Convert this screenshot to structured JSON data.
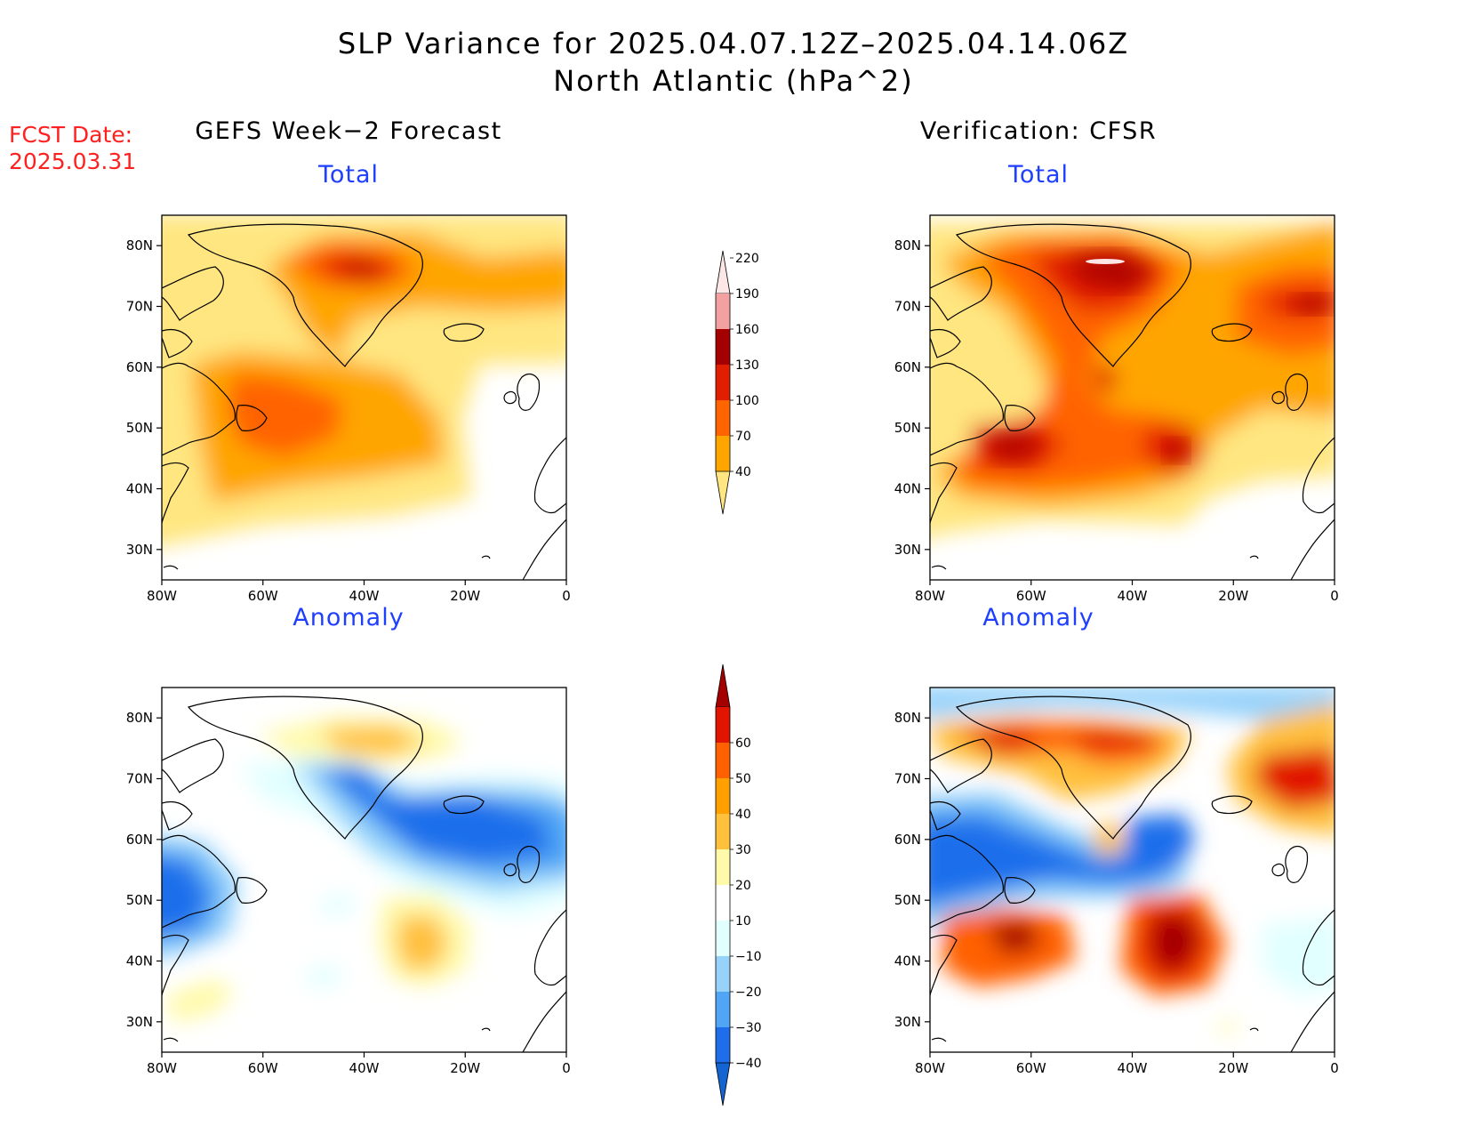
{
  "title_line1": "SLP Variance for 2025.04.07.12Z–2025.04.14.06Z",
  "title_line2": "North Atlantic (hPa^2)",
  "fcst_label": "FCST Date:",
  "fcst_value": "2025.03.31",
  "left_column_title": "GEFS Week−2 Forecast",
  "right_column_title": "Verification: CFSR",
  "panel_titles": [
    "Total",
    "Total",
    "Anomaly",
    "Anomaly"
  ],
  "map_extent": {
    "lon": [
      -80,
      0
    ],
    "lat": [
      25,
      85
    ]
  },
  "lon_ticks": [
    {
      "v": -80,
      "label": "80W"
    },
    {
      "v": -60,
      "label": "60W"
    },
    {
      "v": -40,
      "label": "40W"
    },
    {
      "v": -20,
      "label": "20W"
    },
    {
      "v": 0,
      "label": "0"
    }
  ],
  "lat_ticks": [
    {
      "v": 30,
      "label": "30N"
    },
    {
      "v": 40,
      "label": "40N"
    },
    {
      "v": 50,
      "label": "50N"
    },
    {
      "v": 60,
      "label": "60N"
    },
    {
      "v": 70,
      "label": "70N"
    },
    {
      "v": 80,
      "label": "80N"
    }
  ],
  "colorbar_total": {
    "levels": [
      "40",
      "70",
      "100",
      "130",
      "160",
      "190",
      "220"
    ],
    "colors": [
      "#ffe680",
      "#ffa500",
      "#ff6400",
      "#e11e00",
      "#a50000",
      "#f2a0a0",
      "#fde6e6"
    ]
  },
  "colorbar_anomaly": {
    "levels": [
      "−40",
      "−30",
      "−20",
      "−10",
      "10",
      "20",
      "30",
      "40",
      "50",
      "60"
    ],
    "colors": [
      "#1464d2",
      "#1e6eeb",
      "#50a5f5",
      "#96d2fa",
      "#e1ffff",
      "#ffffff",
      "#fffaaa",
      "#ffc03c",
      "#ffa000",
      "#ff6000",
      "#e11400",
      "#a50000"
    ]
  }
}
